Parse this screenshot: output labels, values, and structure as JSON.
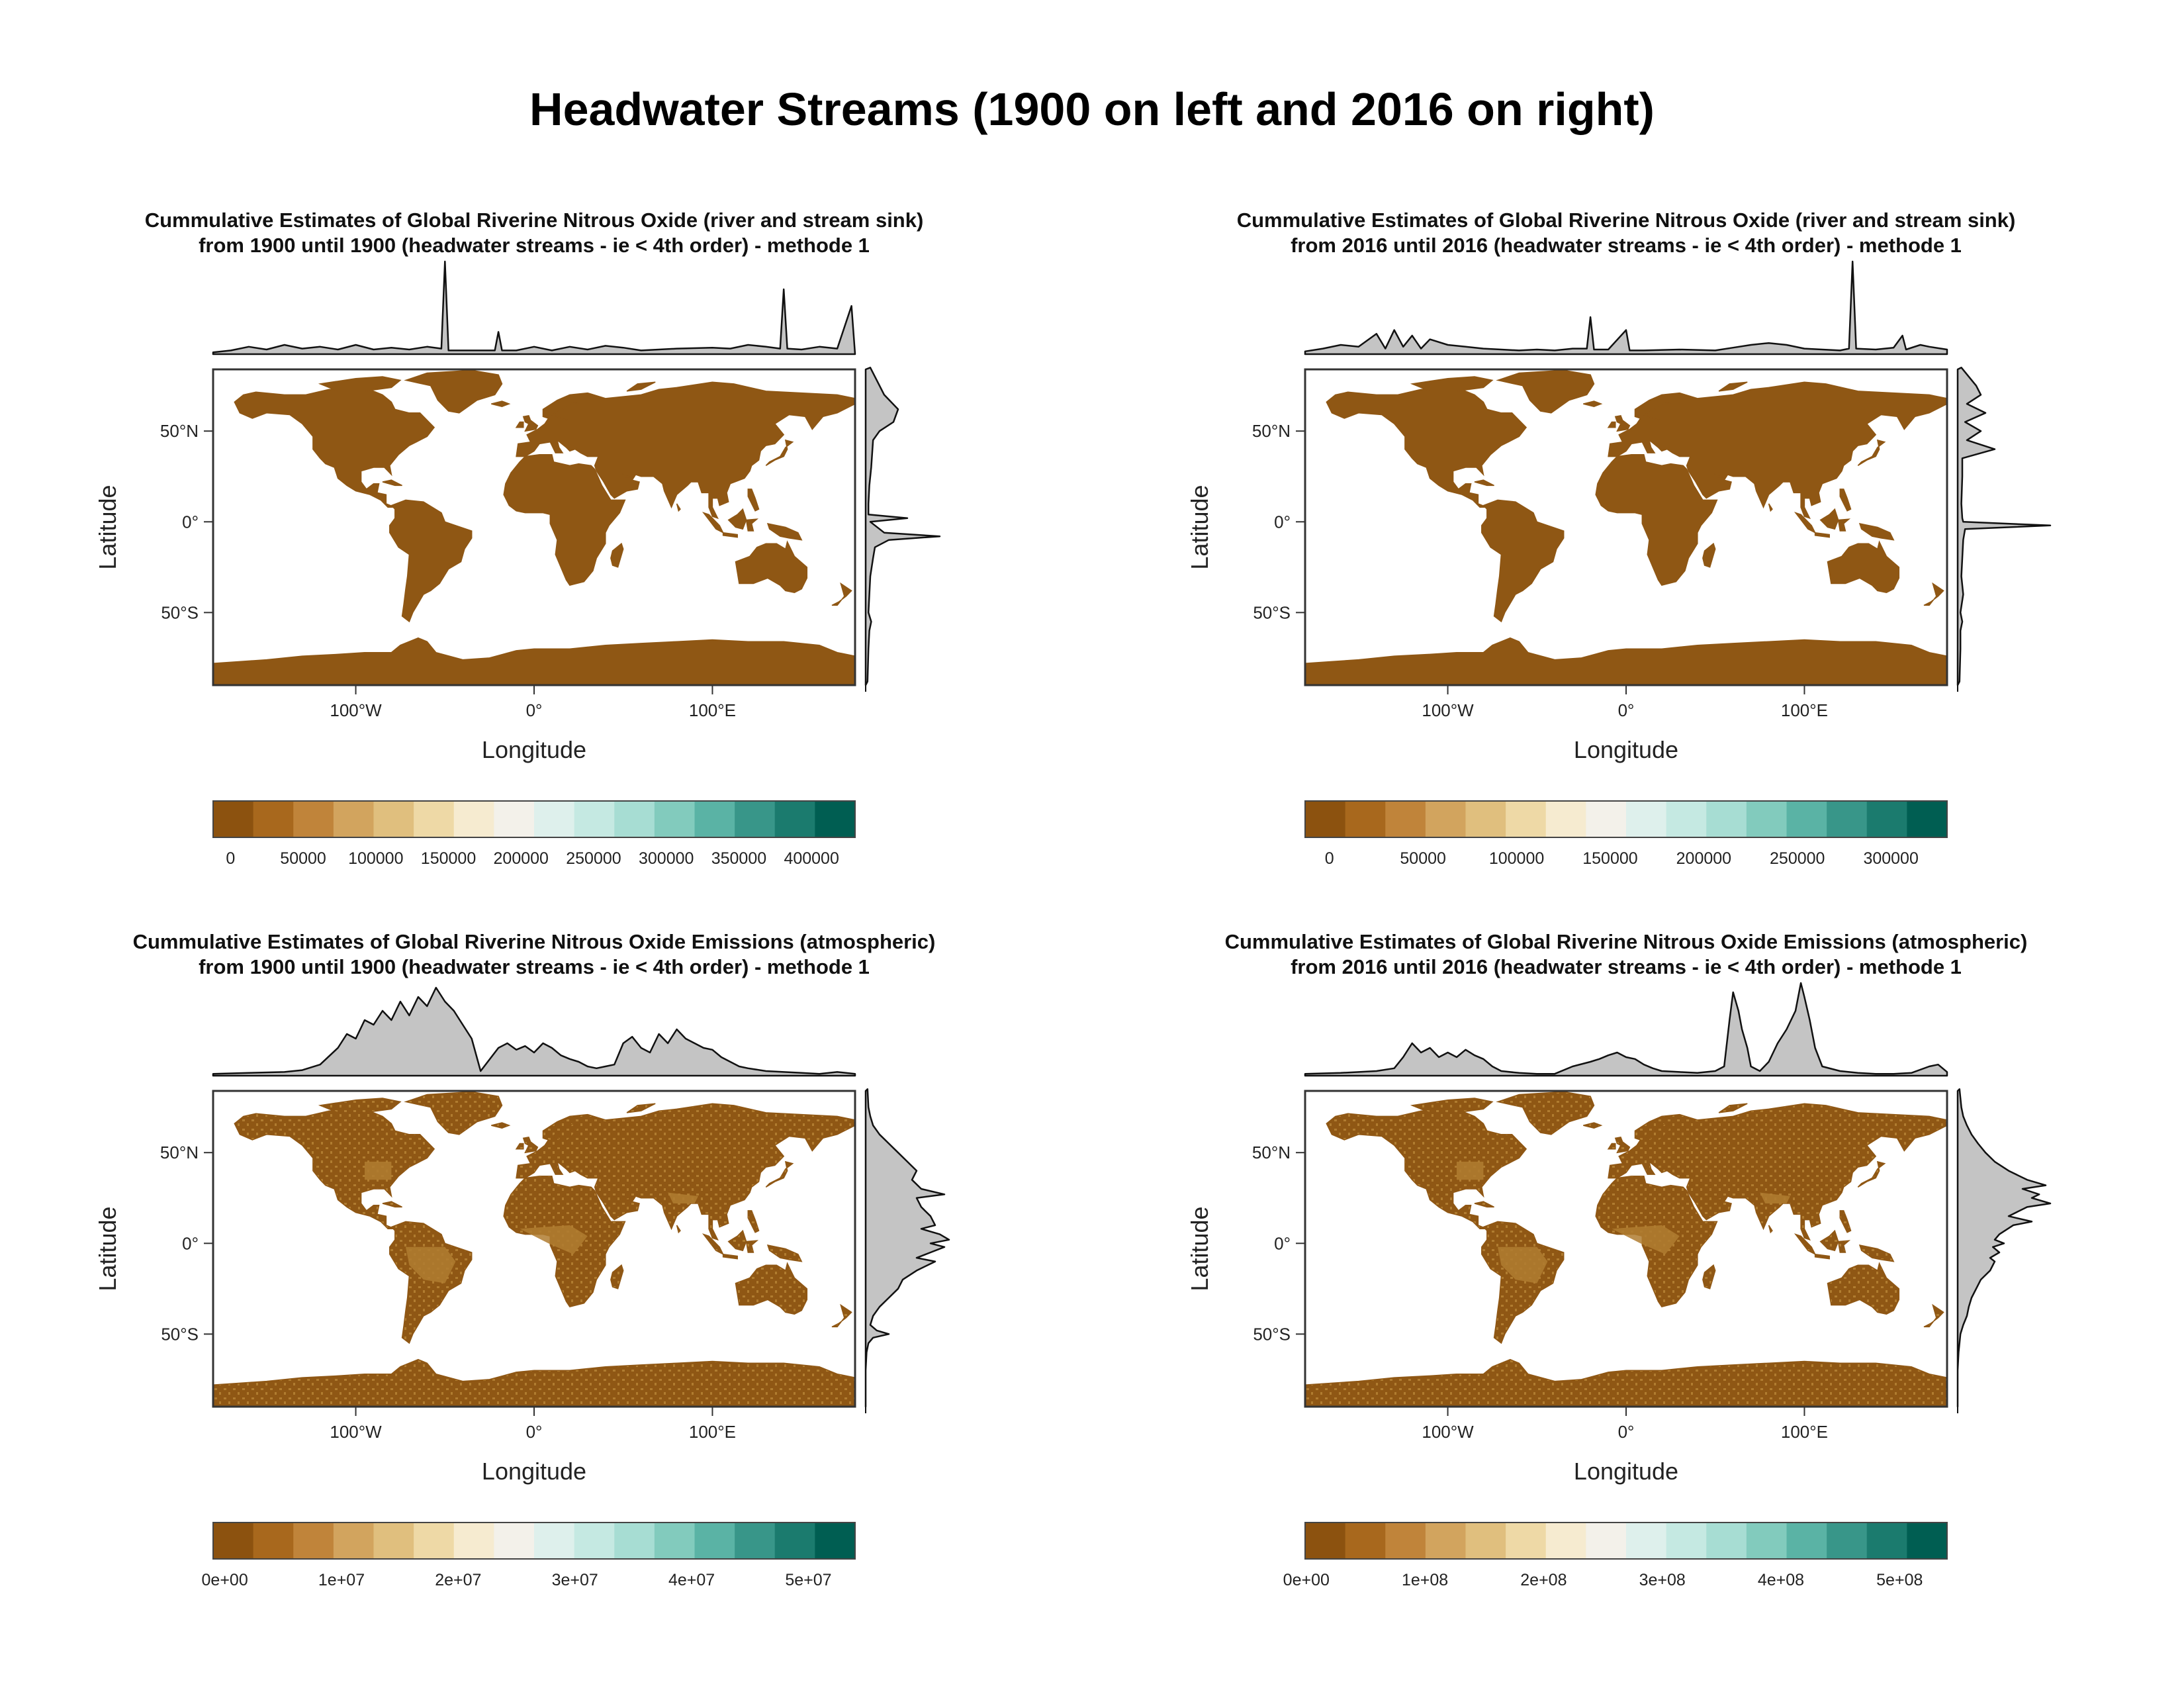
{
  "title": "Headwater Streams (1900 on left and 2016 on right)",
  "map_fill": "#8f5714",
  "map_fill_light": "#b07c30",
  "palette": [
    "#8c520f",
    "#a8681d",
    "#c0843a",
    "#d2a45e",
    "#e0bf7e",
    "#eed9a6",
    "#f6ebd0",
    "#f3f1ea",
    "#def0ec",
    "#c5e9e2",
    "#a7ddd3",
    "#82cbbd",
    "#5ab3a5",
    "#389689",
    "#1b7b6e",
    "#005e52"
  ],
  "chart_data": [
    {
      "type": "map",
      "title_line1": "Cummulative Estimates of Global Riverine Nitrous Oxide (river and stream sink)",
      "title_line2": "from 1900 until 1900 (headwater streams - ie < 4th order) - methode 1",
      "xlabel": "Longitude",
      "ylabel": "Latitude",
      "x_ticks": [
        "100°W",
        "0°",
        "100°E"
      ],
      "y_ticks": [
        "50°N",
        "0°",
        "50°S"
      ],
      "legend_labels": [
        "0",
        "50000",
        "100000",
        "150000",
        "200000",
        "250000",
        "300000",
        "350000",
        "400000"
      ],
      "legend_range": [
        -12000,
        430000
      ],
      "legend_values": [
        0,
        50000,
        100000,
        150000,
        200000,
        250000,
        300000,
        350000,
        400000
      ],
      "lon_profile": [
        [
          -180,
          2
        ],
        [
          -170,
          4
        ],
        [
          -160,
          8
        ],
        [
          -150,
          5
        ],
        [
          -140,
          10
        ],
        [
          -130,
          6
        ],
        [
          -120,
          8
        ],
        [
          -110,
          5
        ],
        [
          -100,
          10
        ],
        [
          -90,
          5
        ],
        [
          -80,
          7
        ],
        [
          -70,
          5
        ],
        [
          -60,
          8
        ],
        [
          -52,
          6
        ],
        [
          -50,
          100
        ],
        [
          -48,
          4
        ],
        [
          -40,
          4
        ],
        [
          -30,
          4
        ],
        [
          -22,
          4
        ],
        [
          -20,
          24
        ],
        [
          -18,
          4
        ],
        [
          -10,
          4
        ],
        [
          0,
          8
        ],
        [
          10,
          4
        ],
        [
          20,
          8
        ],
        [
          30,
          5
        ],
        [
          40,
          9
        ],
        [
          50,
          7
        ],
        [
          60,
          4
        ],
        [
          70,
          5
        ],
        [
          80,
          6
        ],
        [
          100,
          7
        ],
        [
          110,
          6
        ],
        [
          120,
          10
        ],
        [
          130,
          8
        ],
        [
          138,
          6
        ],
        [
          140,
          70
        ],
        [
          142,
          6
        ],
        [
          150,
          5
        ],
        [
          160,
          8
        ],
        [
          170,
          6
        ],
        [
          178,
          52
        ],
        [
          180,
          0
        ]
      ],
      "lat_profile": [
        [
          85,
          5
        ],
        [
          75,
          15
        ],
        [
          70,
          20
        ],
        [
          62,
          35
        ],
        [
          55,
          30
        ],
        [
          50,
          15
        ],
        [
          45,
          8
        ],
        [
          30,
          6
        ],
        [
          20,
          4
        ],
        [
          10,
          3
        ],
        [
          4,
          3
        ],
        [
          2,
          45
        ],
        [
          0,
          5
        ],
        [
          -4,
          15
        ],
        [
          -6,
          20
        ],
        [
          -8,
          80
        ],
        [
          -10,
          25
        ],
        [
          -14,
          10
        ],
        [
          -20,
          8
        ],
        [
          -30,
          5
        ],
        [
          -40,
          4
        ],
        [
          -50,
          3
        ],
        [
          -55,
          6
        ],
        [
          -60,
          4
        ],
        [
          -70,
          3
        ],
        [
          -88,
          2
        ]
      ],
      "map_variant": "uniform"
    },
    {
      "type": "map",
      "title_line1": "Cummulative Estimates of Global Riverine Nitrous Oxide (river and stream sink)",
      "title_line2": "from 2016 until 2016 (headwater streams - ie < 4th order) - methode 1",
      "xlabel": "Longitude",
      "ylabel": "Latitude",
      "x_ticks": [
        "100°W",
        "0°",
        "100°E"
      ],
      "y_ticks": [
        "50°N",
        "0°",
        "50°S"
      ],
      "legend_labels": [
        "0",
        "50000",
        "100000",
        "150000",
        "200000",
        "250000",
        "300000"
      ],
      "legend_range": [
        -13000,
        330000
      ],
      "legend_values": [
        0,
        50000,
        100000,
        150000,
        200000,
        250000,
        300000
      ],
      "lon_profile": [
        [
          -180,
          3
        ],
        [
          -170,
          6
        ],
        [
          -160,
          10
        ],
        [
          -150,
          8
        ],
        [
          -140,
          22
        ],
        [
          -135,
          6
        ],
        [
          -130,
          26
        ],
        [
          -125,
          8
        ],
        [
          -120,
          20
        ],
        [
          -115,
          6
        ],
        [
          -110,
          16
        ],
        [
          -100,
          10
        ],
        [
          -90,
          8
        ],
        [
          -80,
          6
        ],
        [
          -70,
          5
        ],
        [
          -60,
          4
        ],
        [
          -50,
          5
        ],
        [
          -40,
          4
        ],
        [
          -30,
          6
        ],
        [
          -22,
          6
        ],
        [
          -20,
          40
        ],
        [
          -18,
          5
        ],
        [
          -10,
          5
        ],
        [
          0,
          26
        ],
        [
          2,
          4
        ],
        [
          10,
          4
        ],
        [
          30,
          5
        ],
        [
          50,
          4
        ],
        [
          60,
          7
        ],
        [
          70,
          10
        ],
        [
          80,
          12
        ],
        [
          90,
          10
        ],
        [
          100,
          6
        ],
        [
          110,
          5
        ],
        [
          120,
          4
        ],
        [
          125,
          6
        ],
        [
          127,
          100
        ],
        [
          129,
          6
        ],
        [
          140,
          5
        ],
        [
          150,
          7
        ],
        [
          155,
          20
        ],
        [
          157,
          5
        ],
        [
          165,
          10
        ],
        [
          170,
          8
        ],
        [
          180,
          5
        ]
      ],
      "lat_profile": [
        [
          85,
          4
        ],
        [
          75,
          20
        ],
        [
          70,
          25
        ],
        [
          65,
          10
        ],
        [
          60,
          30
        ],
        [
          55,
          8
        ],
        [
          50,
          25
        ],
        [
          45,
          10
        ],
        [
          40,
          40
        ],
        [
          35,
          5
        ],
        [
          25,
          5
        ],
        [
          10,
          4
        ],
        [
          2,
          5
        ],
        [
          0,
          6
        ],
        [
          -2,
          100
        ],
        [
          -4,
          8
        ],
        [
          -10,
          6
        ],
        [
          -20,
          5
        ],
        [
          -30,
          4
        ],
        [
          -40,
          6
        ],
        [
          -50,
          3
        ],
        [
          -55,
          5
        ],
        [
          -60,
          3
        ],
        [
          -70,
          3
        ],
        [
          -88,
          2
        ]
      ],
      "map_variant": "uniform"
    },
    {
      "type": "map",
      "title_line1": "Cummulative Estimates of Global Riverine Nitrous Oxide Emissions (atmospheric)",
      "title_line2": "from 1900 until 1900 (headwater streams - ie < 4th order) - methode 1",
      "xlabel": "Longitude",
      "ylabel": "Latitude",
      "x_ticks": [
        "100°W",
        "0°",
        "100°E"
      ],
      "y_ticks": [
        "50°N",
        "0°",
        "50°S"
      ],
      "legend_labels": [
        "0e+00",
        "1e+07",
        "2e+07",
        "3e+07",
        "4e+07",
        "5e+07"
      ],
      "legend_range": [
        -1000000,
        54000000
      ],
      "legend_values": [
        0,
        10000000,
        20000000,
        30000000,
        40000000,
        50000000
      ],
      "lon_profile": [
        [
          -180,
          2
        ],
        [
          -160,
          3
        ],
        [
          -140,
          4
        ],
        [
          -130,
          6
        ],
        [
          -120,
          12
        ],
        [
          -110,
          30
        ],
        [
          -105,
          45
        ],
        [
          -100,
          40
        ],
        [
          -95,
          60
        ],
        [
          -90,
          55
        ],
        [
          -85,
          70
        ],
        [
          -80,
          60
        ],
        [
          -75,
          80
        ],
        [
          -70,
          65
        ],
        [
          -65,
          85
        ],
        [
          -60,
          75
        ],
        [
          -55,
          95
        ],
        [
          -50,
          80
        ],
        [
          -45,
          70
        ],
        [
          -40,
          55
        ],
        [
          -35,
          40
        ],
        [
          -30,
          5
        ],
        [
          -20,
          30
        ],
        [
          -15,
          35
        ],
        [
          -10,
          28
        ],
        [
          -5,
          32
        ],
        [
          0,
          25
        ],
        [
          5,
          35
        ],
        [
          10,
          30
        ],
        [
          15,
          22
        ],
        [
          20,
          18
        ],
        [
          25,
          15
        ],
        [
          30,
          10
        ],
        [
          35,
          8
        ],
        [
          40,
          10
        ],
        [
          45,
          12
        ],
        [
          50,
          35
        ],
        [
          55,
          42
        ],
        [
          60,
          30
        ],
        [
          65,
          25
        ],
        [
          70,
          45
        ],
        [
          75,
          35
        ],
        [
          80,
          50
        ],
        [
          85,
          40
        ],
        [
          90,
          35
        ],
        [
          95,
          30
        ],
        [
          100,
          28
        ],
        [
          105,
          20
        ],
        [
          110,
          15
        ],
        [
          115,
          10
        ],
        [
          120,
          8
        ],
        [
          130,
          5
        ],
        [
          140,
          4
        ],
        [
          150,
          3
        ],
        [
          160,
          2
        ],
        [
          170,
          4
        ],
        [
          180,
          2
        ]
      ],
      "lat_profile": [
        [
          85,
          2
        ],
        [
          75,
          3
        ],
        [
          70,
          5
        ],
        [
          65,
          8
        ],
        [
          60,
          15
        ],
        [
          55,
          25
        ],
        [
          50,
          35
        ],
        [
          45,
          45
        ],
        [
          40,
          55
        ],
        [
          35,
          50
        ],
        [
          30,
          60
        ],
        [
          27,
          85
        ],
        [
          25,
          55
        ],
        [
          20,
          60
        ],
        [
          15,
          70
        ],
        [
          10,
          75
        ],
        [
          8,
          60
        ],
        [
          5,
          80
        ],
        [
          2,
          90
        ],
        [
          0,
          70
        ],
        [
          -2,
          85
        ],
        [
          -5,
          70
        ],
        [
          -8,
          55
        ],
        [
          -10,
          75
        ],
        [
          -15,
          55
        ],
        [
          -20,
          40
        ],
        [
          -25,
          35
        ],
        [
          -30,
          25
        ],
        [
          -35,
          15
        ],
        [
          -40,
          8
        ],
        [
          -45,
          5
        ],
        [
          -48,
          12
        ],
        [
          -50,
          25
        ],
        [
          -52,
          8
        ],
        [
          -55,
          3
        ],
        [
          -60,
          1
        ],
        [
          -70,
          0
        ],
        [
          -88,
          0
        ]
      ],
      "map_variant": "textured"
    },
    {
      "type": "map",
      "title_line1": "Cummulative Estimates of Global Riverine Nitrous Oxide Emissions (atmospheric)",
      "title_line2": "from 2016 until 2016 (headwater streams - ie < 4th order) - methode 1",
      "xlabel": "Longitude",
      "ylabel": "Latitude",
      "x_ticks": [
        "100°W",
        "0°",
        "100°E"
      ],
      "y_ticks": [
        "50°N",
        "0°",
        "50°S"
      ],
      "legend_labels": [
        "0e+00",
        "1e+08",
        "2e+08",
        "3e+08",
        "4e+08",
        "5e+08"
      ],
      "legend_range": [
        -1000000,
        540000000
      ],
      "legend_values": [
        0,
        100000000,
        200000000,
        300000000,
        400000000,
        500000000
      ],
      "lon_profile": [
        [
          -180,
          2
        ],
        [
          -160,
          3
        ],
        [
          -140,
          5
        ],
        [
          -130,
          8
        ],
        [
          -125,
          20
        ],
        [
          -120,
          35
        ],
        [
          -115,
          25
        ],
        [
          -110,
          30
        ],
        [
          -105,
          20
        ],
        [
          -100,
          25
        ],
        [
          -95,
          20
        ],
        [
          -90,
          28
        ],
        [
          -85,
          22
        ],
        [
          -80,
          18
        ],
        [
          -75,
          10
        ],
        [
          -70,
          5
        ],
        [
          -60,
          3
        ],
        [
          -50,
          2
        ],
        [
          -40,
          2
        ],
        [
          -30,
          10
        ],
        [
          -20,
          15
        ],
        [
          -15,
          18
        ],
        [
          -10,
          22
        ],
        [
          -5,
          25
        ],
        [
          0,
          20
        ],
        [
          5,
          18
        ],
        [
          10,
          12
        ],
        [
          15,
          8
        ],
        [
          20,
          5
        ],
        [
          30,
          4
        ],
        [
          40,
          3
        ],
        [
          50,
          5
        ],
        [
          55,
          10
        ],
        [
          58,
          60
        ],
        [
          60,
          90
        ],
        [
          63,
          70
        ],
        [
          65,
          50
        ],
        [
          68,
          30
        ],
        [
          70,
          10
        ],
        [
          75,
          5
        ],
        [
          80,
          15
        ],
        [
          85,
          35
        ],
        [
          90,
          50
        ],
        [
          95,
          70
        ],
        [
          98,
          100
        ],
        [
          100,
          85
        ],
        [
          103,
          60
        ],
        [
          106,
          30
        ],
        [
          110,
          10
        ],
        [
          120,
          5
        ],
        [
          130,
          3
        ],
        [
          140,
          2
        ],
        [
          150,
          2
        ],
        [
          160,
          3
        ],
        [
          170,
          10
        ],
        [
          175,
          12
        ],
        [
          180,
          4
        ]
      ],
      "lat_profile": [
        [
          85,
          2
        ],
        [
          75,
          4
        ],
        [
          70,
          6
        ],
        [
          65,
          10
        ],
        [
          60,
          15
        ],
        [
          55,
          22
        ],
        [
          50,
          30
        ],
        [
          45,
          40
        ],
        [
          40,
          55
        ],
        [
          35,
          75
        ],
        [
          32,
          95
        ],
        [
          30,
          70
        ],
        [
          27,
          88
        ],
        [
          25,
          80
        ],
        [
          22,
          100
        ],
        [
          20,
          75
        ],
        [
          15,
          55
        ],
        [
          12,
          80
        ],
        [
          10,
          60
        ],
        [
          5,
          45
        ],
        [
          2,
          40
        ],
        [
          0,
          50
        ],
        [
          -2,
          38
        ],
        [
          -5,
          45
        ],
        [
          -8,
          35
        ],
        [
          -10,
          40
        ],
        [
          -15,
          35
        ],
        [
          -20,
          25
        ],
        [
          -25,
          20
        ],
        [
          -30,
          15
        ],
        [
          -35,
          12
        ],
        [
          -40,
          10
        ],
        [
          -45,
          6
        ],
        [
          -50,
          3
        ],
        [
          -55,
          2
        ],
        [
          -60,
          1
        ],
        [
          -70,
          0
        ],
        [
          -88,
          0
        ]
      ],
      "map_variant": "textured"
    }
  ]
}
